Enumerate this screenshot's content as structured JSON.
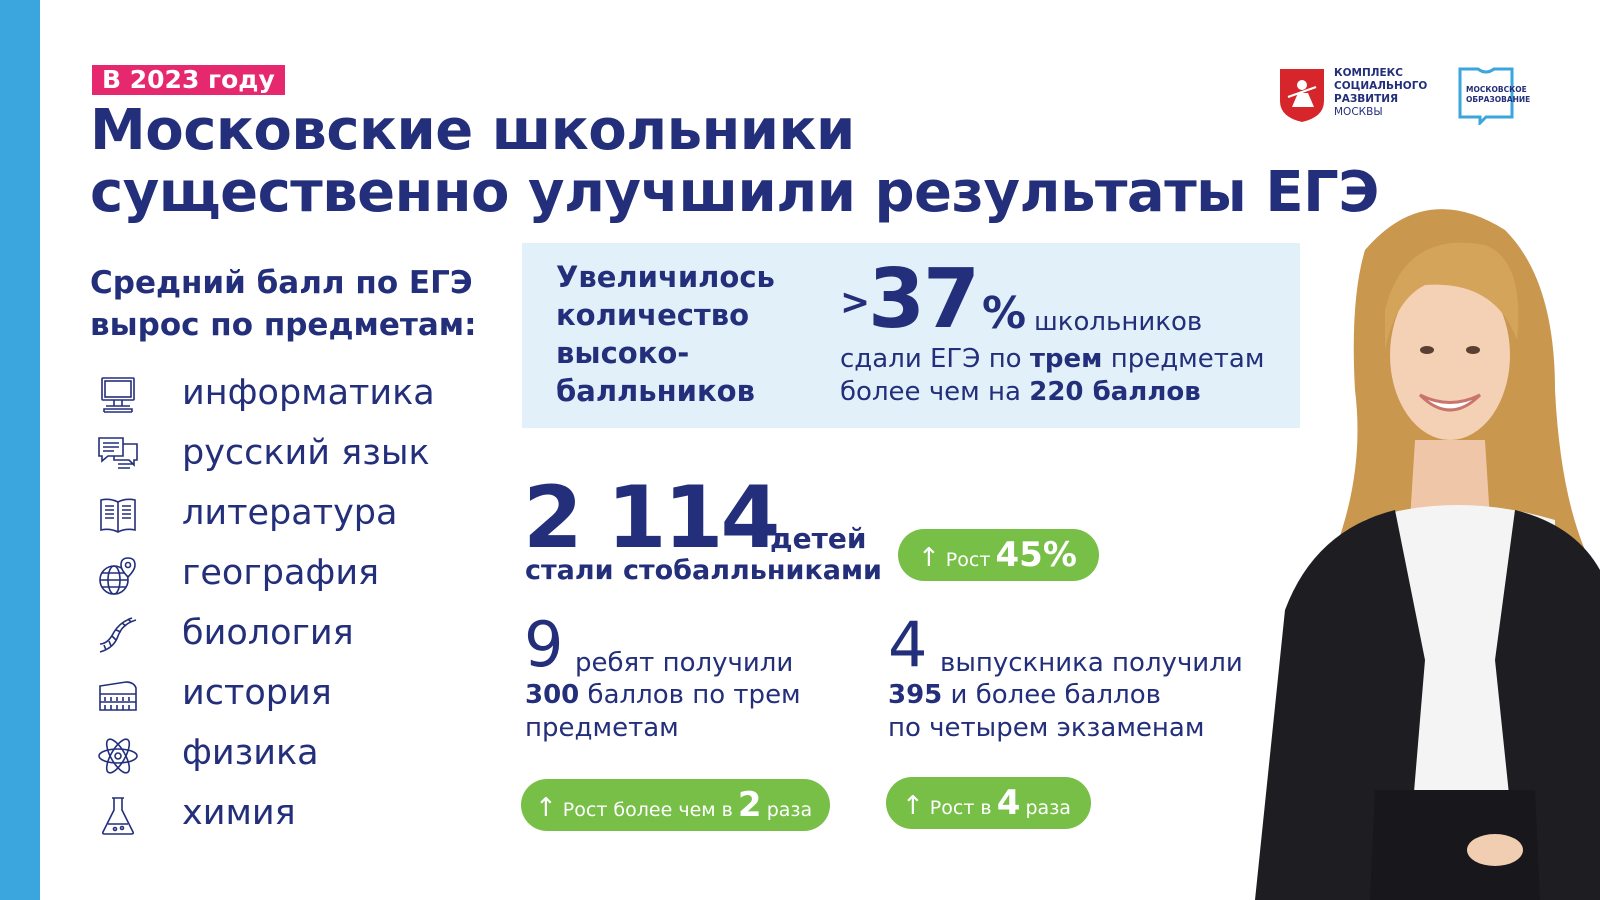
{
  "header": {
    "year_badge": "В 2023 году",
    "title_line1": "Московские школьники",
    "title_line2": "существенно улучшили результаты ЕГЭ"
  },
  "logos": {
    "moscow_complex": [
      "КОМПЛЕКС",
      "СОЦИАЛЬНОГО",
      "РАЗВИТИЯ",
      "МОСКВЫ"
    ],
    "moscow_education": [
      "МОСКОВСКОЕ",
      "ОБРАЗОВАНИЕ"
    ]
  },
  "subjects_block": {
    "heading_line1": "Средний балл по ЕГЭ",
    "heading_line2": "вырос по предметам:",
    "items": [
      {
        "label": "информатика",
        "icon": "computer-icon"
      },
      {
        "label": "русский язык",
        "icon": "speech-bubbles-icon"
      },
      {
        "label": "литература",
        "icon": "book-icon"
      },
      {
        "label": "география",
        "icon": "globe-pin-icon"
      },
      {
        "label": "биология",
        "icon": "dna-icon"
      },
      {
        "label": "история",
        "icon": "colosseum-icon"
      },
      {
        "label": "физика",
        "icon": "atom-icon"
      },
      {
        "label": "химия",
        "icon": "flask-icon"
      }
    ]
  },
  "highlight": {
    "left_lines": [
      "Увеличилось",
      "количество",
      "высоко-",
      "балльников"
    ],
    "prefix": ">",
    "number": "37",
    "percent": "%",
    "word": "школьников",
    "line2_a": "сдали ЕГЭ по ",
    "line2_b": "трем",
    "line2_c": " предметам",
    "line3_a": "более чем на ",
    "line3_b": "220 баллов"
  },
  "hundred_pointers": {
    "number": "2 114",
    "word": "детей",
    "subtitle": "стали стобалльниками",
    "growth_label": "Рост",
    "growth_value": "45%"
  },
  "stat_300": {
    "number": "9",
    "line1": "ребят получили",
    "line2_bold": "300",
    "line2_rest": " баллов по трем",
    "line3": "предметам",
    "growth_label": "Рост более чем в",
    "growth_value": "2",
    "growth_unit": "раза"
  },
  "stat_395": {
    "number": "4",
    "line1": "выпускника получили",
    "line2_bold": "395",
    "line2_rest": " и более баллов",
    "line3": "по четырем экзаменам",
    "growth_label": "Рост в",
    "growth_value": "4",
    "growth_unit": "раза"
  },
  "colors": {
    "navy": "#232f7a",
    "accent_pink": "#e6296f",
    "stripe_blue": "#3aa6dd",
    "panel_blue": "#e2f0fa",
    "green": "#78bf48"
  }
}
